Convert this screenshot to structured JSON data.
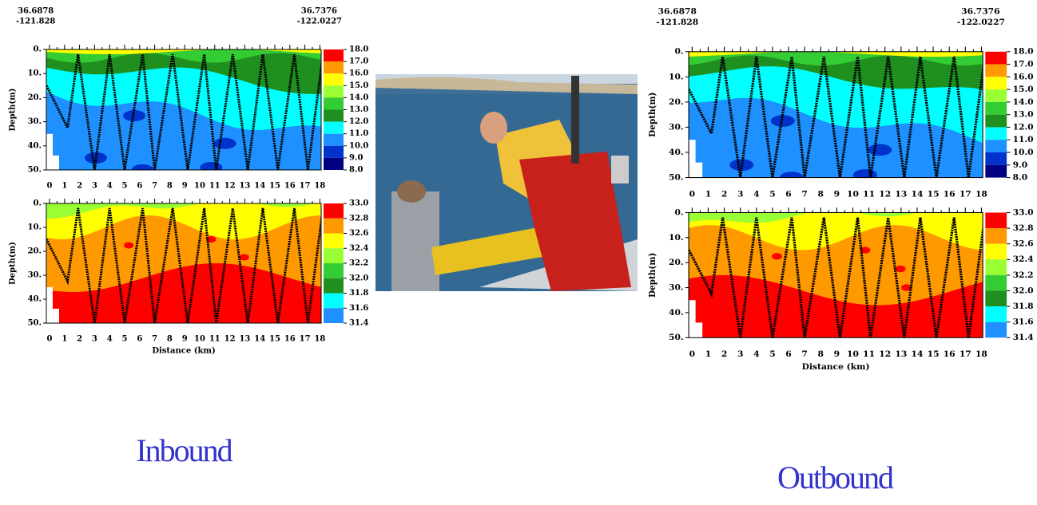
{
  "panels": [
    {
      "coords_left": [
        "36.6878",
        "-121.828"
      ],
      "coords_right": [
        "36.7376",
        "-122.0227"
      ],
      "depth_label": "Depth(m)",
      "depth_ticks": [
        "0.",
        "10.",
        "20.",
        "30.",
        "40.",
        "50."
      ],
      "distance_ticks": [
        "0",
        "1",
        "2",
        "3",
        "4",
        "5",
        "6",
        "7",
        "8",
        "9",
        "10",
        "11",
        "12",
        "13",
        "14",
        "15",
        "16",
        "17",
        "18"
      ],
      "distance_label": "Distance (km)",
      "temp_scale": [
        "18.0",
        "17.0",
        "16.0",
        "15.0",
        "14.0",
        "13.0",
        "12.0",
        "11.0",
        "10.0",
        "9.0",
        "8.0"
      ],
      "sal_scale": [
        "33.0",
        "32.8",
        "32.6",
        "32.4",
        "32.2",
        "32.0",
        "31.8",
        "31.6",
        "31.4"
      ],
      "caption": "Inbound"
    },
    {
      "coords_left": [
        "36.6878",
        "-121.828"
      ],
      "coords_right": [
        "36.7376",
        "-122.0227"
      ],
      "depth_label": "Depth(m)",
      "depth_ticks": [
        "0.",
        "10.",
        "20.",
        "30.",
        "40.",
        "50."
      ],
      "distance_ticks": [
        "0",
        "1",
        "2",
        "3",
        "4",
        "5",
        "6",
        "7",
        "8",
        "9",
        "10",
        "11",
        "12",
        "13",
        "14",
        "15",
        "16",
        "17",
        "18"
      ],
      "distance_label": "Distance (km)",
      "temp_scale": [
        "18.0",
        "17.0",
        "16.0",
        "15.0",
        "14.0",
        "13.0",
        "12.0",
        "11.0",
        "10.0",
        "9.0",
        "8.0"
      ],
      "sal_scale": [
        "33.0",
        "32.8",
        "32.6",
        "32.4",
        "32.2",
        "32.0",
        "31.8",
        "31.6",
        "31.4"
      ],
      "caption": "Outbound"
    }
  ]
}
